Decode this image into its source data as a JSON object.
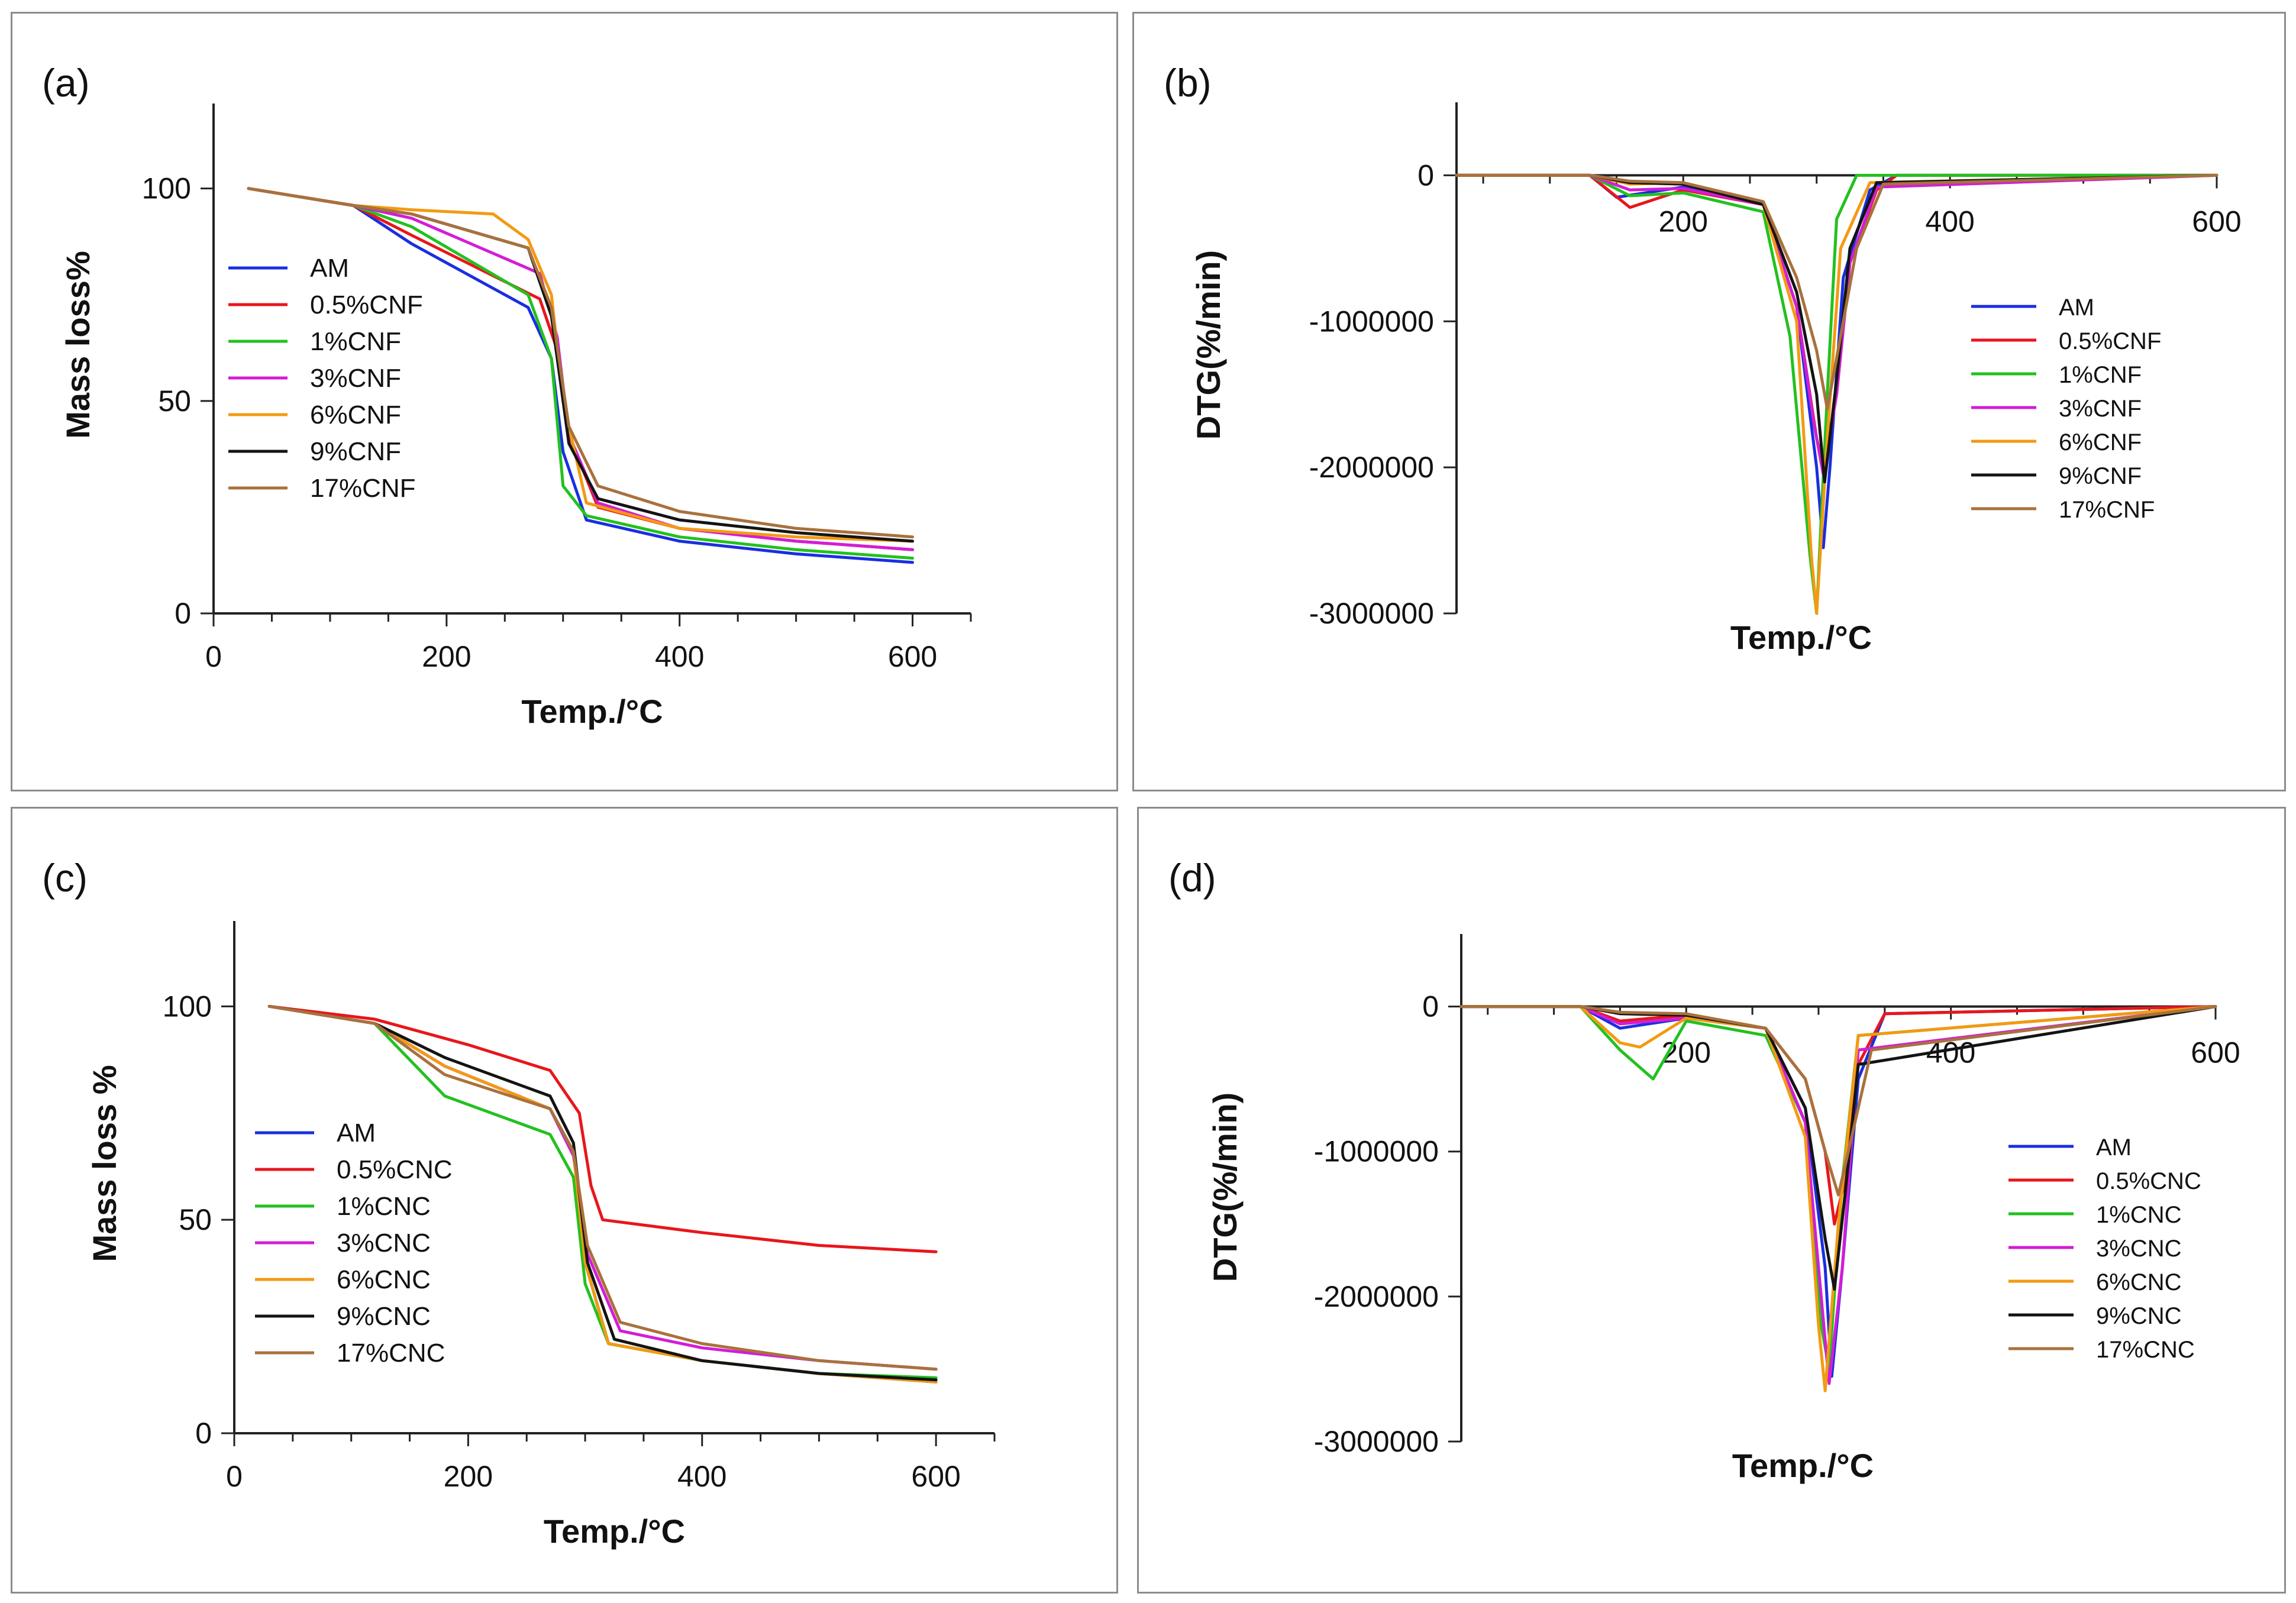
{
  "chart_data": [
    {
      "panel": "(a)",
      "type": "line",
      "title": "",
      "xlabel": "Temp./°C",
      "ylabel": "Mass loss%",
      "xlim": [
        0,
        650
      ],
      "ylim": [
        0,
        120
      ],
      "xticks": [
        "0",
        "200",
        "400",
        "600"
      ],
      "yticks": [
        "0",
        "50",
        "100"
      ],
      "legend_position": "center-left",
      "series": [
        {
          "name": "AM",
          "color": "#1a2ee0",
          "x": [
            30,
            120,
            170,
            270,
            290,
            300,
            320,
            400,
            500,
            600
          ],
          "values": [
            100,
            96,
            87,
            72,
            60,
            38,
            22,
            17,
            14,
            12
          ]
        },
        {
          "name": "0.5%CNF",
          "color": "#e8161b",
          "x": [
            30,
            120,
            170,
            280,
            295,
            305,
            330,
            400,
            500,
            600
          ],
          "values": [
            100,
            96,
            89,
            74,
            62,
            42,
            25,
            20,
            17,
            15
          ]
        },
        {
          "name": "1%CNF",
          "color": "#22c11f",
          "x": [
            30,
            120,
            170,
            270,
            290,
            300,
            320,
            400,
            500,
            600
          ],
          "values": [
            100,
            96,
            91,
            75,
            60,
            30,
            23,
            18,
            15,
            13
          ]
        },
        {
          "name": "3%CNF",
          "color": "#d31dd6",
          "x": [
            30,
            120,
            170,
            280,
            295,
            305,
            330,
            400,
            500,
            600
          ],
          "values": [
            100,
            96,
            93,
            80,
            65,
            42,
            26,
            20,
            17,
            15
          ]
        },
        {
          "name": "6%CNF",
          "color": "#f39a12",
          "x": [
            30,
            120,
            170,
            240,
            270,
            290,
            300,
            320,
            400,
            500,
            600
          ],
          "values": [
            100,
            96,
            95,
            94,
            88,
            75,
            50,
            26,
            20,
            18,
            17
          ]
        },
        {
          "name": "9%CNF",
          "color": "#141414",
          "x": [
            30,
            120,
            170,
            270,
            290,
            305,
            330,
            400,
            500,
            600
          ],
          "values": [
            100,
            96,
            94,
            86,
            70,
            40,
            27,
            22,
            19,
            17
          ]
        },
        {
          "name": "17%CNF",
          "color": "#a9713d",
          "x": [
            30,
            120,
            170,
            270,
            290,
            305,
            330,
            400,
            500,
            600
          ],
          "values": [
            100,
            96,
            94,
            86,
            72,
            44,
            30,
            24,
            20,
            18
          ]
        }
      ]
    },
    {
      "panel": "(b)",
      "type": "line",
      "title": "",
      "xlabel": "Temp./°C",
      "ylabel": "DTG(%/min)",
      "xlim": [
        30,
        600
      ],
      "ylim": [
        -3000000,
        500000
      ],
      "xticks": [
        "200",
        "400",
        "600"
      ],
      "yticks": [
        "0",
        "-1000000",
        "-2000000",
        "-3000000"
      ],
      "legend_position": "center-right",
      "series": [
        {
          "name": "AM",
          "color": "#1a2ee0",
          "x": [
            30,
            130,
            150,
            200,
            260,
            285,
            300,
            305,
            310,
            320,
            340,
            360,
            600
          ],
          "values": [
            0,
            0,
            -150000,
            -80000,
            -200000,
            -900000,
            -2000000,
            -2550000,
            -2000000,
            -700000,
            -100000,
            0,
            0
          ]
        },
        {
          "name": "0.5%CNF",
          "color": "#e8161b",
          "x": [
            30,
            130,
            160,
            200,
            260,
            285,
            300,
            305,
            315,
            325,
            345,
            360,
            600
          ],
          "values": [
            0,
            0,
            -220000,
            -100000,
            -200000,
            -900000,
            -1800000,
            -2000000,
            -1500000,
            -600000,
            -100000,
            0,
            0
          ]
        },
        {
          "name": "1%CNF",
          "color": "#22c11f",
          "x": [
            30,
            130,
            160,
            200,
            260,
            280,
            295,
            300,
            308,
            315,
            330,
            600
          ],
          "values": [
            0,
            0,
            -140000,
            -120000,
            -250000,
            -1100000,
            -2600000,
            -3000000,
            -1500000,
            -300000,
            0,
            0
          ]
        },
        {
          "name": "3%CNF",
          "color": "#d31dd6",
          "x": [
            30,
            130,
            160,
            200,
            260,
            285,
            298,
            305,
            315,
            325,
            345,
            600
          ],
          "values": [
            0,
            0,
            -100000,
            -90000,
            -200000,
            -900000,
            -1700000,
            -2050000,
            -1500000,
            -600000,
            -80000,
            0
          ]
        },
        {
          "name": "6%CNF",
          "color": "#f39a12",
          "x": [
            30,
            130,
            160,
            200,
            260,
            285,
            296,
            300,
            308,
            318,
            340,
            600
          ],
          "values": [
            0,
            0,
            -60000,
            -50000,
            -200000,
            -1000000,
            -2600000,
            -3000000,
            -1800000,
            -500000,
            -50000,
            0
          ]
        },
        {
          "name": "9%CNF",
          "color": "#141414",
          "x": [
            30,
            130,
            160,
            200,
            260,
            285,
            300,
            306,
            315,
            325,
            345,
            600
          ],
          "values": [
            0,
            0,
            -50000,
            -60000,
            -200000,
            -800000,
            -1500000,
            -2100000,
            -1400000,
            -500000,
            -50000,
            0
          ]
        },
        {
          "name": "17%CNF",
          "color": "#a9713d",
          "x": [
            30,
            130,
            160,
            200,
            260,
            285,
            300,
            308,
            318,
            330,
            350,
            600
          ],
          "values": [
            0,
            0,
            -40000,
            -50000,
            -180000,
            -700000,
            -1200000,
            -1600000,
            -1100000,
            -500000,
            -60000,
            0
          ]
        }
      ]
    },
    {
      "panel": "(c)",
      "type": "line",
      "title": "",
      "xlabel": "Temp./°C",
      "ylabel": "Mass loss %",
      "xlim": [
        0,
        650
      ],
      "ylim": [
        0,
        120
      ],
      "xticks": [
        "0",
        "200",
        "400",
        "600"
      ],
      "yticks": [
        "0",
        "50",
        "100"
      ],
      "legend_position": "center-left",
      "series": [
        {
          "name": "AM",
          "color": "#1a2ee0",
          "x": [
            30,
            120,
            180,
            270,
            290,
            300,
            320,
            400,
            500,
            600
          ],
          "values": [
            100,
            96,
            86,
            76,
            66,
            40,
            21,
            17,
            14,
            12
          ]
        },
        {
          "name": "0.5%CNC",
          "color": "#e8161b",
          "x": [
            30,
            120,
            200,
            270,
            295,
            305,
            315,
            400,
            500,
            600
          ],
          "values": [
            100,
            97,
            91,
            85,
            75,
            58,
            50,
            47,
            44,
            42.5
          ]
        },
        {
          "name": "1%CNC",
          "color": "#22c11f",
          "x": [
            30,
            120,
            180,
            270,
            290,
            300,
            320,
            400,
            500,
            600
          ],
          "values": [
            100,
            96,
            79,
            70,
            60,
            35,
            21,
            17,
            14,
            13
          ]
        },
        {
          "name": "3%CNC",
          "color": "#d31dd6",
          "x": [
            30,
            120,
            180,
            270,
            290,
            302,
            330,
            400,
            500,
            600
          ],
          "values": [
            100,
            96,
            86,
            76,
            65,
            42,
            24,
            20,
            17,
            15
          ]
        },
        {
          "name": "6%CNC",
          "color": "#f39a12",
          "x": [
            30,
            120,
            180,
            270,
            290,
            300,
            320,
            400,
            500,
            600
          ],
          "values": [
            100,
            96,
            86,
            76,
            66,
            40,
            21,
            17,
            14,
            12
          ]
        },
        {
          "name": "9%CNC",
          "color": "#141414",
          "x": [
            30,
            120,
            180,
            270,
            290,
            302,
            325,
            400,
            500,
            600
          ],
          "values": [
            100,
            96,
            88,
            79,
            68,
            40,
            22,
            17,
            14,
            12.5
          ]
        },
        {
          "name": "17%CNC",
          "color": "#a9713d",
          "x": [
            30,
            120,
            180,
            270,
            290,
            302,
            330,
            400,
            500,
            600
          ],
          "values": [
            100,
            96,
            84,
            76,
            66,
            44,
            26,
            21,
            17,
            15
          ]
        }
      ]
    },
    {
      "panel": "(d)",
      "type": "line",
      "title": "",
      "xlabel": "Temp./°C",
      "ylabel": "DTG(%/min)",
      "xlim": [
        30,
        600
      ],
      "ylim": [
        -3000000,
        500000
      ],
      "xticks": [
        "200",
        "400",
        "600"
      ],
      "yticks": [
        "0",
        "-1000000",
        "-2000000",
        "-3000000"
      ],
      "legend_position": "center-right",
      "series": [
        {
          "name": "AM",
          "color": "#1a2ee0",
          "x": [
            30,
            120,
            150,
            200,
            260,
            290,
            305,
            310,
            318,
            330,
            350,
            600
          ],
          "values": [
            0,
            0,
            -150000,
            -80000,
            -150000,
            -700000,
            -1800000,
            -2550000,
            -1800000,
            -500000,
            -50000,
            0
          ]
        },
        {
          "name": "0.5%CNC",
          "color": "#e8161b",
          "x": [
            30,
            120,
            150,
            200,
            260,
            290,
            305,
            312,
            320,
            330,
            350,
            600
          ],
          "values": [
            0,
            0,
            -100000,
            -60000,
            -150000,
            -500000,
            -1000000,
            -1500000,
            -1200000,
            -400000,
            -50000,
            0
          ]
        },
        {
          "name": "1%CNC",
          "color": "#22c11f",
          "x": [
            30,
            120,
            150,
            175,
            200,
            260,
            290,
            302,
            308,
            318,
            330,
            600
          ],
          "values": [
            0,
            0,
            -300000,
            -500000,
            -100000,
            -200000,
            -800000,
            -2200000,
            -2500000,
            -1200000,
            -200000,
            0
          ]
        },
        {
          "name": "3%CNC",
          "color": "#d31dd6",
          "x": [
            30,
            120,
            150,
            200,
            260,
            290,
            302,
            308,
            318,
            330,
            600
          ],
          "values": [
            0,
            0,
            -120000,
            -80000,
            -150000,
            -800000,
            -2000000,
            -2600000,
            -1800000,
            -300000,
            0
          ]
        },
        {
          "name": "6%CNC",
          "color": "#f39a12",
          "x": [
            30,
            120,
            150,
            165,
            200,
            260,
            290,
            300,
            305,
            315,
            330,
            600
          ],
          "values": [
            0,
            0,
            -250000,
            -280000,
            -80000,
            -150000,
            -900000,
            -2200000,
            -2650000,
            -1500000,
            -200000,
            0
          ]
        },
        {
          "name": "9%CNC",
          "color": "#141414",
          "x": [
            30,
            120,
            150,
            200,
            260,
            290,
            305,
            312,
            320,
            330,
            600
          ],
          "values": [
            0,
            0,
            -50000,
            -60000,
            -150000,
            -700000,
            -1600000,
            -1950000,
            -1300000,
            -400000,
            0
          ]
        },
        {
          "name": "17%CNC",
          "color": "#a9713d",
          "x": [
            30,
            120,
            150,
            200,
            260,
            290,
            305,
            315,
            325,
            340,
            600
          ],
          "values": [
            0,
            0,
            -40000,
            -50000,
            -150000,
            -500000,
            -1000000,
            -1300000,
            -900000,
            -300000,
            0
          ]
        }
      ]
    }
  ]
}
